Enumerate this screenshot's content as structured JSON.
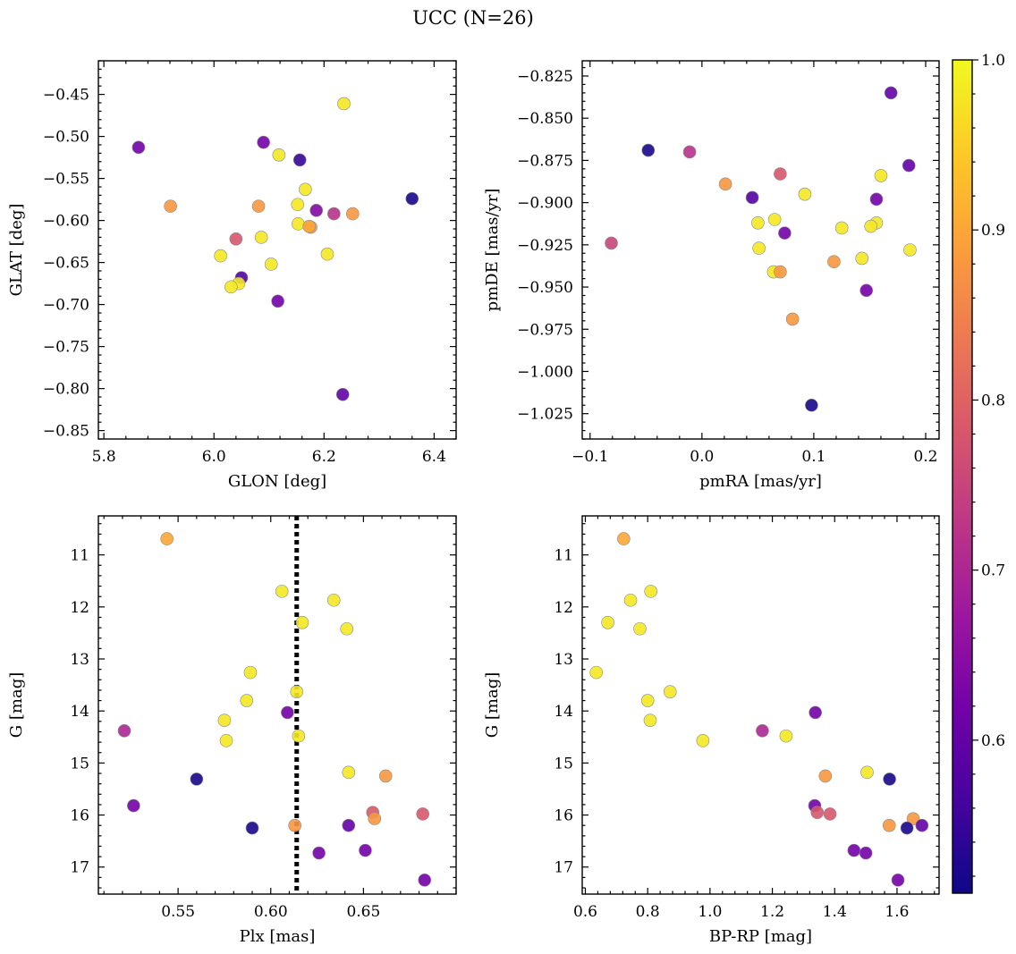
{
  "figure": {
    "title": "UCC (N=26)"
  },
  "colorbar": {
    "range": [
      0.51,
      1.0
    ],
    "ticks": [
      0.6,
      0.7,
      0.8,
      0.9,
      1.0
    ],
    "colormap": "plasma",
    "stops": [
      "#0d0887",
      "#46039f",
      "#7201a8",
      "#9c179e",
      "#bd3786",
      "#d8576b",
      "#ed7953",
      "#fb9f3a",
      "#fdca26",
      "#f0f921"
    ]
  },
  "chart_data": [
    {
      "type": "scatter",
      "xlabel": "GLON [deg]",
      "ylabel": "GLAT [deg]",
      "xlim": [
        5.79,
        6.44
      ],
      "ylim": [
        -0.86,
        -0.41
      ],
      "y_inverted": false,
      "xticks": [
        5.8,
        6.0,
        6.2,
        6.4
      ],
      "yticks": [
        -0.85,
        -0.8,
        -0.75,
        -0.7,
        -0.65,
        -0.6,
        -0.55,
        -0.5,
        -0.45
      ],
      "x": [
        5.863,
        6.236,
        6.09,
        6.118,
        6.156,
        5.921,
        6.36,
        6.166,
        6.081,
        6.152,
        6.186,
        6.218,
        6.252,
        6.153,
        6.176,
        6.173,
        6.04,
        6.086,
        6.012,
        6.206,
        6.104,
        6.05,
        6.045,
        6.031,
        6.116,
        6.234
      ],
      "y": [
        -0.513,
        -0.461,
        -0.507,
        -0.522,
        -0.528,
        -0.583,
        -0.574,
        -0.563,
        -0.583,
        -0.581,
        -0.588,
        -0.592,
        -0.592,
        -0.604,
        -0.608,
        -0.607,
        -0.622,
        -0.62,
        -0.642,
        -0.64,
        -0.652,
        -0.668,
        -0.675,
        -0.679,
        -0.696,
        -0.807
      ],
      "color": [
        0.62,
        0.98,
        0.62,
        0.98,
        0.55,
        0.88,
        0.52,
        0.98,
        0.88,
        0.98,
        0.64,
        0.72,
        0.88,
        0.98,
        0.88,
        0.9,
        0.78,
        0.98,
        0.98,
        0.98,
        0.98,
        0.58,
        0.98,
        0.98,
        0.62,
        0.6
      ]
    },
    {
      "type": "scatter",
      "xlabel": "pmRA [mas/yr]",
      "ylabel": "pmDE [mas/yr]",
      "xlim": [
        -0.107,
        0.212
      ],
      "ylim": [
        -1.04,
        -0.816
      ],
      "y_inverted": false,
      "xticks": [
        -0.1,
        0.0,
        0.1,
        0.2
      ],
      "yticks": [
        -1.025,
        -1.0,
        -0.975,
        -0.95,
        -0.925,
        -0.9,
        -0.875,
        -0.85,
        -0.825
      ],
      "x": [
        -0.048,
        -0.011,
        0.169,
        0.07,
        0.185,
        0.021,
        0.16,
        0.045,
        0.092,
        0.156,
        0.125,
        0.05,
        0.074,
        0.065,
        0.156,
        0.151,
        -0.081,
        0.051,
        0.186,
        0.118,
        0.143,
        0.064,
        0.07,
        0.147,
        0.081,
        0.098
      ],
      "y": [
        -0.869,
        -0.87,
        -0.835,
        -0.883,
        -0.878,
        -0.889,
        -0.884,
        -0.897,
        -0.895,
        -0.898,
        -0.915,
        -0.912,
        -0.918,
        -0.91,
        -0.912,
        -0.914,
        -0.924,
        -0.927,
        -0.928,
        -0.935,
        -0.933,
        -0.941,
        -0.941,
        -0.952,
        -0.969,
        -1.02
      ],
      "color": [
        0.52,
        0.72,
        0.6,
        0.78,
        0.6,
        0.88,
        0.98,
        0.58,
        0.98,
        0.62,
        0.98,
        0.98,
        0.62,
        0.98,
        0.98,
        0.98,
        0.75,
        0.98,
        0.98,
        0.88,
        0.98,
        0.98,
        0.88,
        0.62,
        0.88,
        0.52
      ]
    },
    {
      "type": "scatter",
      "xlabel": "Plx [mas]",
      "ylabel": "G [mag]",
      "xlim": [
        0.507,
        0.7
      ],
      "ylim": [
        17.52,
        10.25
      ],
      "y_inverted": true,
      "xticks": [
        0.55,
        0.6,
        0.65
      ],
      "yticks": [
        11,
        12,
        13,
        14,
        15,
        16,
        17
      ],
      "x": [
        0.544,
        0.606,
        0.634,
        0.617,
        0.641,
        0.589,
        0.614,
        0.587,
        0.575,
        0.609,
        0.521,
        0.576,
        0.615,
        0.642,
        0.662,
        0.56,
        0.526,
        0.655,
        0.682,
        0.656,
        0.613,
        0.642,
        0.59,
        0.651,
        0.626,
        0.683
      ],
      "y": [
        10.69,
        11.7,
        11.87,
        12.3,
        12.42,
        13.26,
        13.63,
        13.8,
        14.18,
        14.03,
        14.38,
        14.57,
        14.48,
        15.18,
        15.25,
        15.31,
        15.82,
        15.95,
        15.98,
        16.07,
        16.2,
        16.2,
        16.25,
        16.68,
        16.73,
        17.25
      ],
      "color": [
        0.9,
        0.98,
        0.98,
        0.98,
        0.98,
        0.98,
        0.98,
        0.98,
        0.98,
        0.62,
        0.7,
        0.98,
        0.98,
        0.98,
        0.88,
        0.52,
        0.62,
        0.78,
        0.78,
        0.88,
        0.88,
        0.6,
        0.52,
        0.62,
        0.62,
        0.62
      ],
      "vline": {
        "x": 0.614,
        "style": "dotted",
        "color": "#000000"
      }
    },
    {
      "type": "scatter",
      "xlabel": "BP-RP [mag]",
      "ylabel": "G [mag]",
      "xlim": [
        0.59,
        1.735
      ],
      "ylim": [
        17.52,
        10.25
      ],
      "y_inverted": true,
      "xticks": [
        0.6,
        0.8,
        1.0,
        1.2,
        1.4,
        1.6
      ],
      "yticks": [
        11,
        12,
        13,
        14,
        15,
        16,
        17
      ],
      "x": [
        0.723,
        0.81,
        0.745,
        0.672,
        0.775,
        0.635,
        0.872,
        0.8,
        0.808,
        1.338,
        1.168,
        0.977,
        1.244,
        1.504,
        1.37,
        1.576,
        1.336,
        1.344,
        1.385,
        1.652,
        1.575,
        1.68,
        1.632,
        1.462,
        1.5,
        1.603
      ],
      "y": [
        10.69,
        11.7,
        11.87,
        12.3,
        12.42,
        13.26,
        13.63,
        13.8,
        14.18,
        14.03,
        14.38,
        14.57,
        14.48,
        15.18,
        15.25,
        15.31,
        15.82,
        15.95,
        15.98,
        16.07,
        16.2,
        16.2,
        16.25,
        16.68,
        16.73,
        17.25
      ],
      "color": [
        0.9,
        0.98,
        0.98,
        0.98,
        0.98,
        0.98,
        0.98,
        0.98,
        0.98,
        0.62,
        0.7,
        0.98,
        0.98,
        0.98,
        0.88,
        0.52,
        0.62,
        0.78,
        0.78,
        0.88,
        0.88,
        0.6,
        0.52,
        0.62,
        0.62,
        0.62
      ]
    }
  ]
}
